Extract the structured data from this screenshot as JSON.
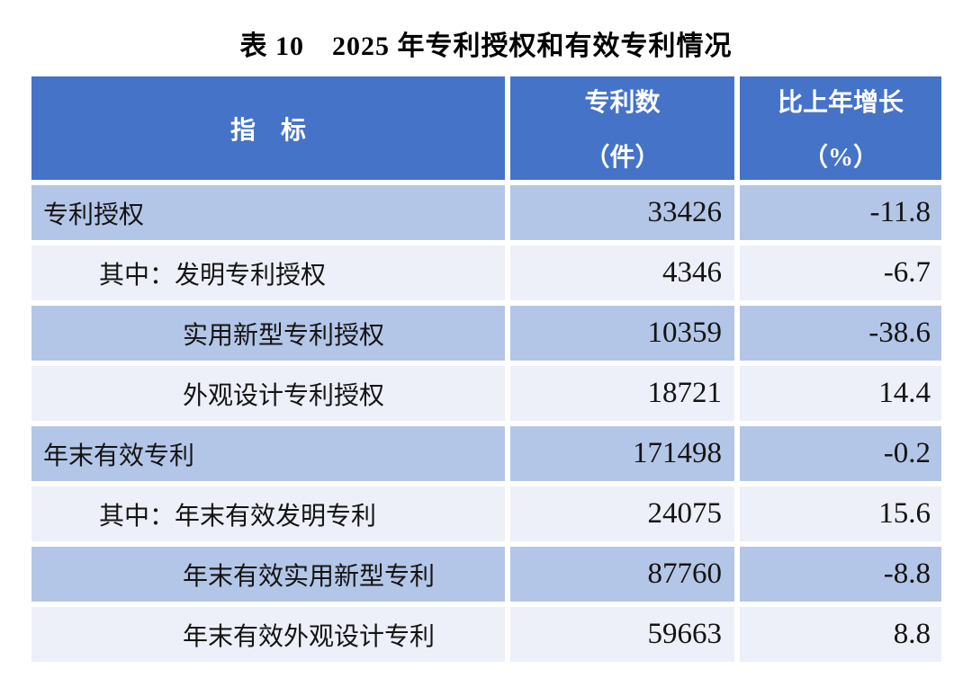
{
  "title": "表 10　2025 年专利授权和有效专利情况",
  "table": {
    "header": {
      "indicator_label": "指　标",
      "count_label_line1": "专利数",
      "count_label_line2": "（件）",
      "growth_label_line1": "比上年增长",
      "growth_label_line2": "（%）"
    },
    "rows": [
      {
        "label": "专利授权",
        "indent": 0,
        "count": "33426",
        "growth": "-11.8"
      },
      {
        "label": "其中：发明专利授权",
        "indent": 1,
        "count": "4346",
        "growth": "-6.7"
      },
      {
        "label": "实用新型专利授权",
        "indent": 2,
        "count": "10359",
        "growth": "-38.6"
      },
      {
        "label": "外观设计专利授权",
        "indent": 2,
        "count": "18721",
        "growth": "14.4"
      },
      {
        "label": "年末有效专利",
        "indent": 0,
        "count": "171498",
        "growth": "-0.2"
      },
      {
        "label": "其中：年末有效发明专利",
        "indent": 1,
        "count": "24075",
        "growth": "15.6"
      },
      {
        "label": "年末有效实用新型专利",
        "indent": 2,
        "count": "87760",
        "growth": "-8.8"
      },
      {
        "label": "年末有效外观设计专利",
        "indent": 2,
        "count": "59663",
        "growth": "8.8"
      }
    ]
  },
  "colors": {
    "header_bg": "#4573C8",
    "band_medium": "#B4C6E7",
    "band_light": "#EDEFF9",
    "divider": "#FFFFFF",
    "header_text": "#FFFFFF",
    "body_text": "#141414"
  },
  "chart_data": {
    "type": "table",
    "title": "表 10　2025 年专利授权和有效专利情况",
    "columns": [
      "指标",
      "专利数（件）",
      "比上年增长（%）"
    ],
    "rows": [
      [
        "专利授权",
        33426,
        -11.8
      ],
      [
        "其中：发明专利授权",
        4346,
        -6.7
      ],
      [
        "实用新型专利授权",
        10359,
        -38.6
      ],
      [
        "外观设计专利授权",
        18721,
        14.4
      ],
      [
        "年末有效专利",
        171498,
        -0.2
      ],
      [
        "其中：年末有效发明专利",
        24075,
        15.6
      ],
      [
        "年末有效实用新型专利",
        87760,
        -8.8
      ],
      [
        "年末有效外观设计专利",
        59663,
        8.8
      ]
    ]
  }
}
